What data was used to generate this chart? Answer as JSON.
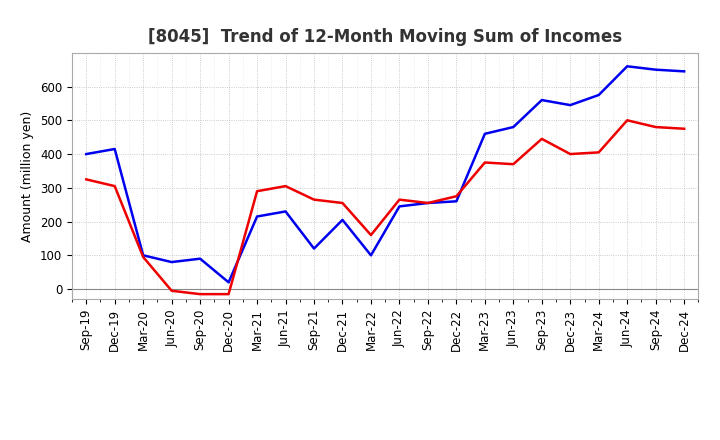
{
  "title": "[8045]  Trend of 12-Month Moving Sum of Incomes",
  "ylabel": "Amount (million yen)",
  "background_color": "#ffffff",
  "plot_bg_color": "#ffffff",
  "grid_color": "#aaaaaa",
  "x_labels": [
    "Sep-19",
    "Dec-19",
    "Mar-20",
    "Jun-20",
    "Sep-20",
    "Dec-20",
    "Mar-21",
    "Jun-21",
    "Sep-21",
    "Dec-21",
    "Mar-22",
    "Jun-22",
    "Sep-22",
    "Dec-22",
    "Mar-23",
    "Jun-23",
    "Sep-23",
    "Dec-23",
    "Mar-24",
    "Jun-24",
    "Sep-24",
    "Dec-24"
  ],
  "ordinary_income": [
    400,
    415,
    100,
    80,
    90,
    20,
    215,
    230,
    120,
    205,
    100,
    245,
    255,
    260,
    460,
    480,
    560,
    545,
    575,
    660,
    650,
    645
  ],
  "net_income": [
    325,
    305,
    95,
    -5,
    -15,
    -15,
    290,
    305,
    265,
    255,
    160,
    265,
    255,
    275,
    375,
    370,
    445,
    400,
    405,
    500,
    480,
    475
  ],
  "ordinary_color": "#0000ee",
  "net_color": "#ee0000",
  "ylim_min": -30,
  "ylim_max": 700,
  "yticks": [
    0,
    100,
    200,
    300,
    400,
    500,
    600
  ],
  "line_width": 1.8,
  "title_fontsize": 12,
  "tick_fontsize": 8.5,
  "ylabel_fontsize": 9
}
